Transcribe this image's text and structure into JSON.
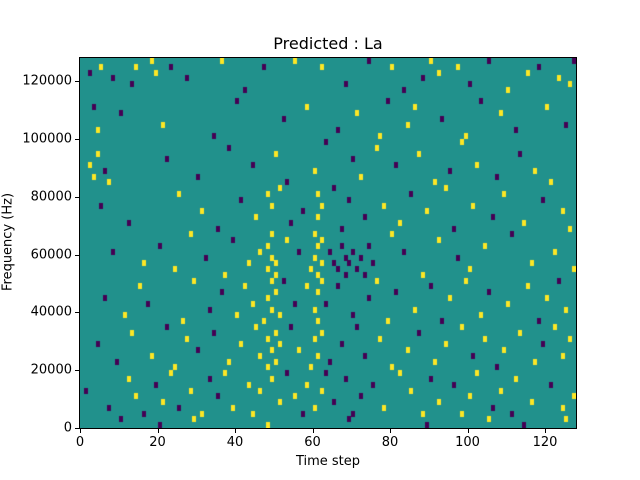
{
  "chart_data": {
    "type": "heatmap",
    "title": "Predicted : La",
    "xlabel": "Time step",
    "ylabel": "Frequency (Hz)",
    "xlim": [
      0,
      128
    ],
    "ylim": [
      0,
      128000
    ],
    "x_ticks": [
      0,
      20,
      40,
      60,
      80,
      100,
      120
    ],
    "y_ticks": [
      0,
      20000,
      40000,
      60000,
      80000,
      100000,
      120000
    ],
    "grid_cols": 128,
    "grid_rows": 64,
    "legend": "none",
    "grid": false,
    "palette": {
      "background": "#21918c",
      "0": "#440154",
      "1": "#fde725"
    },
    "value_meaning": {
      "0": "low (dark purple)",
      "1": "high (yellow)",
      "background": "mid (teal)"
    },
    "cells": [
      [
        2,
        61,
        0
      ],
      [
        5,
        62,
        1
      ],
      [
        8,
        60,
        0
      ],
      [
        13,
        59,
        0
      ],
      [
        14,
        62,
        1
      ],
      [
        18,
        63,
        1
      ],
      [
        19,
        61,
        1
      ],
      [
        23,
        62,
        0
      ],
      [
        27,
        60,
        0
      ],
      [
        36,
        63,
        1
      ],
      [
        42,
        58,
        0
      ],
      [
        47,
        62,
        0
      ],
      [
        55,
        63,
        1
      ],
      [
        62,
        62,
        1
      ],
      [
        68,
        59,
        0
      ],
      [
        74,
        63,
        0
      ],
      [
        80,
        62,
        1
      ],
      [
        83,
        58,
        0
      ],
      [
        88,
        60,
        0
      ],
      [
        90,
        63,
        1
      ],
      [
        92,
        61,
        1
      ],
      [
        97,
        62,
        1
      ],
      [
        100,
        59,
        0
      ],
      [
        105,
        63,
        0
      ],
      [
        110,
        58,
        1
      ],
      [
        115,
        61,
        1
      ],
      [
        118,
        62,
        0
      ],
      [
        123,
        60,
        1
      ],
      [
        126,
        59,
        1
      ],
      [
        127,
        63,
        0
      ],
      [
        3,
        55,
        0
      ],
      [
        4,
        51,
        1
      ],
      [
        10,
        54,
        0
      ],
      [
        21,
        52,
        1
      ],
      [
        34,
        50,
        0
      ],
      [
        40,
        56,
        0
      ],
      [
        52,
        53,
        0
      ],
      [
        58,
        55,
        1
      ],
      [
        66,
        51,
        0
      ],
      [
        71,
        54,
        1
      ],
      [
        77,
        50,
        1
      ],
      [
        79,
        56,
        0
      ],
      [
        84,
        52,
        1
      ],
      [
        86,
        55,
        1
      ],
      [
        93,
        53,
        0
      ],
      [
        99,
        50,
        1
      ],
      [
        103,
        56,
        0
      ],
      [
        108,
        54,
        1
      ],
      [
        112,
        51,
        0
      ],
      [
        120,
        55,
        1
      ],
      [
        125,
        52,
        0
      ],
      [
        2,
        45,
        1
      ],
      [
        3,
        43,
        1
      ],
      [
        4,
        47,
        1
      ],
      [
        6,
        44,
        0
      ],
      [
        7,
        42,
        1
      ],
      [
        22,
        46,
        0
      ],
      [
        30,
        43,
        0
      ],
      [
        38,
        48,
        0
      ],
      [
        44,
        45,
        0
      ],
      [
        50,
        47,
        1
      ],
      [
        53,
        42,
        0
      ],
      [
        60,
        44,
        1
      ],
      [
        63,
        49,
        0
      ],
      [
        70,
        46,
        0
      ],
      [
        72,
        43,
        1
      ],
      [
        76,
        48,
        1
      ],
      [
        81,
        45,
        0
      ],
      [
        87,
        47,
        1
      ],
      [
        91,
        42,
        1
      ],
      [
        95,
        44,
        0
      ],
      [
        98,
        49,
        1
      ],
      [
        102,
        45,
        1
      ],
      [
        107,
        43,
        0
      ],
      [
        113,
        47,
        0
      ],
      [
        117,
        44,
        1
      ],
      [
        121,
        42,
        1
      ],
      [
        5,
        38,
        0
      ],
      [
        12,
        35,
        0
      ],
      [
        25,
        40,
        1
      ],
      [
        31,
        37,
        1
      ],
      [
        35,
        34,
        0
      ],
      [
        41,
        39,
        0
      ],
      [
        45,
        36,
        1
      ],
      [
        48,
        40,
        1
      ],
      [
        49,
        38,
        1
      ],
      [
        51,
        41,
        1
      ],
      [
        54,
        35,
        0
      ],
      [
        57,
        37,
        0
      ],
      [
        61,
        40,
        1
      ],
      [
        61,
        36,
        1
      ],
      [
        62,
        38,
        1
      ],
      [
        65,
        41,
        0
      ],
      [
        67,
        34,
        0
      ],
      [
        69,
        39,
        0
      ],
      [
        73,
        36,
        0
      ],
      [
        78,
        38,
        1
      ],
      [
        82,
        35,
        1
      ],
      [
        85,
        40,
        0
      ],
      [
        89,
        37,
        1
      ],
      [
        94,
        41,
        1
      ],
      [
        96,
        34,
        0
      ],
      [
        101,
        38,
        1
      ],
      [
        106,
        36,
        0
      ],
      [
        109,
        40,
        1
      ],
      [
        114,
        35,
        1
      ],
      [
        119,
        39,
        0
      ],
      [
        124,
        37,
        1
      ],
      [
        126,
        34,
        1
      ],
      [
        8,
        30,
        0
      ],
      [
        16,
        28,
        1
      ],
      [
        20,
        31,
        0
      ],
      [
        24,
        27,
        1
      ],
      [
        28,
        33,
        1
      ],
      [
        32,
        29,
        0
      ],
      [
        37,
        26,
        1
      ],
      [
        39,
        32,
        0
      ],
      [
        43,
        28,
        1
      ],
      [
        46,
        30,
        1
      ],
      [
        48,
        27,
        1
      ],
      [
        48,
        31,
        1
      ],
      [
        49,
        29,
        1
      ],
      [
        49,
        33,
        1
      ],
      [
        50,
        28,
        1
      ],
      [
        50,
        26,
        1
      ],
      [
        53,
        32,
        1
      ],
      [
        56,
        30,
        0
      ],
      [
        59,
        27,
        1
      ],
      [
        60,
        33,
        1
      ],
      [
        60,
        29,
        1
      ],
      [
        61,
        31,
        1
      ],
      [
        61,
        26,
        1
      ],
      [
        62,
        28,
        1
      ],
      [
        62,
        32,
        1
      ],
      [
        64,
        30,
        0
      ],
      [
        65,
        28,
        0
      ],
      [
        66,
        27,
        0
      ],
      [
        67,
        31,
        0
      ],
      [
        68,
        29,
        0
      ],
      [
        68,
        26,
        0
      ],
      [
        69,
        28,
        0
      ],
      [
        70,
        30,
        0
      ],
      [
        71,
        27,
        0
      ],
      [
        72,
        29,
        0
      ],
      [
        73,
        26,
        0
      ],
      [
        74,
        31,
        0
      ],
      [
        75,
        28,
        0
      ],
      [
        80,
        33,
        1
      ],
      [
        83,
        30,
        0
      ],
      [
        88,
        26,
        1
      ],
      [
        92,
        32,
        1
      ],
      [
        97,
        29,
        0
      ],
      [
        100,
        27,
        1
      ],
      [
        104,
        31,
        1
      ],
      [
        111,
        33,
        0
      ],
      [
        116,
        28,
        1
      ],
      [
        122,
        30,
        1
      ],
      [
        127,
        27,
        1
      ],
      [
        6,
        22,
        0
      ],
      [
        11,
        19,
        1
      ],
      [
        15,
        24,
        1
      ],
      [
        17,
        21,
        0
      ],
      [
        26,
        18,
        1
      ],
      [
        29,
        25,
        1
      ],
      [
        33,
        20,
        0
      ],
      [
        36,
        23,
        0
      ],
      [
        40,
        19,
        1
      ],
      [
        42,
        24,
        1
      ],
      [
        44,
        21,
        1
      ],
      [
        47,
        18,
        1
      ],
      [
        48,
        22,
        1
      ],
      [
        49,
        25,
        1
      ],
      [
        49,
        20,
        1
      ],
      [
        50,
        23,
        1
      ],
      [
        51,
        19,
        1
      ],
      [
        52,
        25,
        0
      ],
      [
        55,
        21,
        0
      ],
      [
        58,
        24,
        1
      ],
      [
        60,
        20,
        1
      ],
      [
        61,
        23,
        1
      ],
      [
        61,
        18,
        1
      ],
      [
        62,
        25,
        1
      ],
      [
        63,
        21,
        0
      ],
      [
        66,
        24,
        0
      ],
      [
        70,
        19,
        0
      ],
      [
        74,
        22,
        0
      ],
      [
        76,
        25,
        1
      ],
      [
        79,
        18,
        1
      ],
      [
        81,
        23,
        0
      ],
      [
        86,
        20,
        1
      ],
      [
        90,
        24,
        0
      ],
      [
        93,
        18,
        0
      ],
      [
        95,
        22,
        1
      ],
      [
        99,
        25,
        1
      ],
      [
        103,
        19,
        1
      ],
      [
        105,
        23,
        0
      ],
      [
        110,
        21,
        1
      ],
      [
        115,
        24,
        1
      ],
      [
        118,
        18,
        0
      ],
      [
        120,
        22,
        1
      ],
      [
        123,
        25,
        0
      ],
      [
        125,
        20,
        1
      ],
      [
        4,
        14,
        0
      ],
      [
        9,
        11,
        0
      ],
      [
        13,
        16,
        1
      ],
      [
        18,
        12,
        1
      ],
      [
        22,
        17,
        0
      ],
      [
        24,
        10,
        1
      ],
      [
        27,
        15,
        1
      ],
      [
        30,
        13,
        0
      ],
      [
        34,
        16,
        0
      ],
      [
        38,
        11,
        1
      ],
      [
        41,
        14,
        1
      ],
      [
        45,
        17,
        1
      ],
      [
        46,
        12,
        1
      ],
      [
        48,
        15,
        1
      ],
      [
        48,
        10,
        1
      ],
      [
        49,
        13,
        1
      ],
      [
        50,
        16,
        1
      ],
      [
        50,
        11,
        1
      ],
      [
        51,
        14,
        1
      ],
      [
        54,
        17,
        0
      ],
      [
        56,
        13,
        1
      ],
      [
        59,
        10,
        1
      ],
      [
        60,
        15,
        1
      ],
      [
        61,
        12,
        1
      ],
      [
        62,
        16,
        1
      ],
      [
        64,
        11,
        0
      ],
      [
        67,
        14,
        0
      ],
      [
        71,
        17,
        0
      ],
      [
        73,
        12,
        0
      ],
      [
        77,
        15,
        1
      ],
      [
        80,
        10,
        1
      ],
      [
        84,
        13,
        1
      ],
      [
        87,
        16,
        0
      ],
      [
        91,
        11,
        1
      ],
      [
        94,
        14,
        1
      ],
      [
        98,
        17,
        1
      ],
      [
        101,
        12,
        0
      ],
      [
        104,
        15,
        1
      ],
      [
        107,
        10,
        0
      ],
      [
        109,
        13,
        1
      ],
      [
        113,
        16,
        1
      ],
      [
        117,
        11,
        1
      ],
      [
        119,
        14,
        0
      ],
      [
        122,
        17,
        1
      ],
      [
        124,
        12,
        1
      ],
      [
        126,
        15,
        1
      ],
      [
        1,
        6,
        0
      ],
      [
        7,
        3,
        0
      ],
      [
        12,
        8,
        1
      ],
      [
        14,
        5,
        1
      ],
      [
        16,
        2,
        0
      ],
      [
        19,
        7,
        0
      ],
      [
        21,
        4,
        1
      ],
      [
        23,
        9,
        1
      ],
      [
        25,
        3,
        0
      ],
      [
        28,
        6,
        1
      ],
      [
        31,
        2,
        1
      ],
      [
        33,
        8,
        0
      ],
      [
        35,
        5,
        0
      ],
      [
        37,
        9,
        1
      ],
      [
        39,
        3,
        1
      ],
      [
        43,
        7,
        1
      ],
      [
        44,
        2,
        1
      ],
      [
        46,
        6,
        1
      ],
      [
        49,
        8,
        1
      ],
      [
        51,
        4,
        1
      ],
      [
        53,
        9,
        0
      ],
      [
        55,
        5,
        1
      ],
      [
        57,
        2,
        0
      ],
      [
        58,
        7,
        1
      ],
      [
        60,
        3,
        1
      ],
      [
        62,
        6,
        1
      ],
      [
        63,
        9,
        0
      ],
      [
        65,
        4,
        0
      ],
      [
        68,
        8,
        0
      ],
      [
        70,
        2,
        0
      ],
      [
        72,
        5,
        0
      ],
      [
        75,
        7,
        0
      ],
      [
        78,
        3,
        1
      ],
      [
        82,
        9,
        1
      ],
      [
        85,
        6,
        1
      ],
      [
        88,
        2,
        1
      ],
      [
        90,
        8,
        0
      ],
      [
        92,
        4,
        1
      ],
      [
        96,
        7,
        0
      ],
      [
        98,
        2,
        1
      ],
      [
        100,
        5,
        1
      ],
      [
        102,
        9,
        1
      ],
      [
        106,
        3,
        0
      ],
      [
        108,
        6,
        1
      ],
      [
        111,
        2,
        0
      ],
      [
        112,
        8,
        1
      ],
      [
        116,
        4,
        1
      ],
      [
        121,
        7,
        0
      ],
      [
        124,
        3,
        1
      ],
      [
        127,
        5,
        1
      ],
      [
        10,
        1,
        0
      ],
      [
        20,
        0,
        0
      ],
      [
        29,
        1,
        1
      ],
      [
        48,
        0,
        1
      ],
      [
        69,
        1,
        0
      ],
      [
        89,
        0,
        0
      ],
      [
        105,
        1,
        1
      ],
      [
        114,
        0,
        0
      ],
      [
        125,
        1,
        1
      ]
    ]
  }
}
